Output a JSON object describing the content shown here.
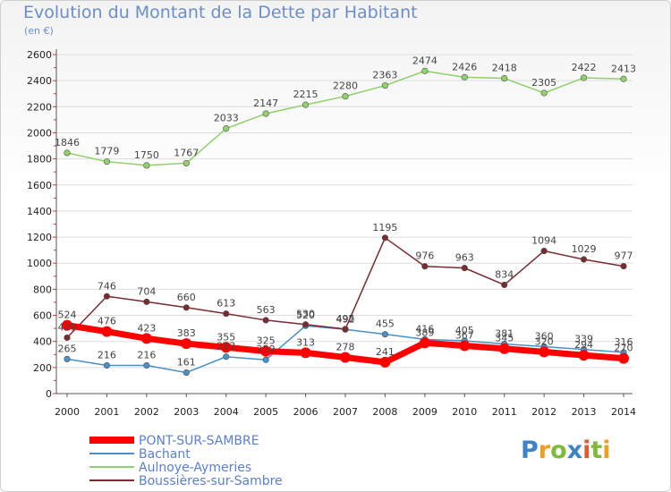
{
  "title": "Evolution du Montant de la Dette par Habitant",
  "subtitle": "(en €)",
  "logo_text": "Proxiti",
  "chart_data": {
    "type": "line",
    "title": "Evolution du Montant de la Dette par Habitant",
    "ylabel": "(en €)",
    "ylim": [
      0,
      2600
    ],
    "yticks": [
      0,
      200,
      400,
      600,
      800,
      1000,
      1200,
      1400,
      1600,
      1800,
      2000,
      2200,
      2400,
      2600
    ],
    "x": [
      "2000",
      "2001",
      "2002",
      "2003",
      "2004",
      "2005",
      "2006",
      "2007",
      "2008",
      "2009",
      "2010",
      "2011",
      "2012",
      "2013",
      "2014"
    ],
    "grid": "horizontal",
    "legend_position": "bottom-left",
    "series": [
      {
        "name": "PONT-SUR-SAMBRE",
        "color": "#ff0000",
        "values": [
          524,
          476,
          423,
          383,
          355,
          325,
          313,
          278,
          241,
          389,
          367,
          345,
          320,
          294,
          270
        ]
      },
      {
        "name": "Bachant",
        "color": "#4a90c8",
        "values": [
          265,
          216,
          216,
          161,
          283,
          259,
          520,
          492,
          455,
          416,
          405,
          381,
          360,
          339,
          316
        ]
      },
      {
        "name": "Aulnoye-Aymeries",
        "color": "#8fd16a",
        "values": [
          1846,
          1779,
          1750,
          1767,
          2033,
          2147,
          2215,
          2280,
          2363,
          2474,
          2426,
          2418,
          2305,
          2422,
          2413
        ]
      },
      {
        "name": "Boussières-sur-Sambre",
        "color": "#7a2b30",
        "values": [
          429,
          746,
          704,
          660,
          613,
          563,
          530,
          495,
          1195,
          976,
          963,
          834,
          1094,
          1029,
          977
        ]
      }
    ]
  }
}
